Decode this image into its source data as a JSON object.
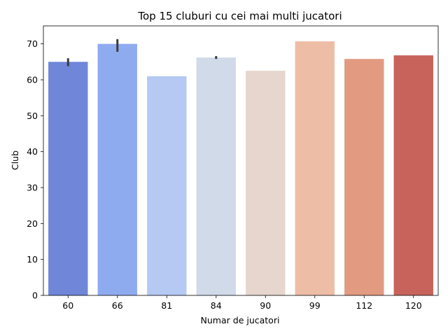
{
  "chart_data": {
    "type": "bar",
    "title": "Top 15 cluburi cu cei mai multi jucatori",
    "xlabel": "Numar de jucatori",
    "ylabel": "Club",
    "categories": [
      "60",
      "66",
      "81",
      "84",
      "90",
      "99",
      "112",
      "120"
    ],
    "values": [
      65.0,
      70.0,
      61.0,
      66.2,
      62.5,
      70.7,
      65.8,
      66.8
    ],
    "error_bars": [
      [
        63.8,
        66.0
      ],
      [
        67.8,
        71.3
      ],
      null,
      [
        65.8,
        66.6
      ],
      null,
      null,
      null,
      null
    ],
    "colors": [
      "#6f86d9",
      "#8fabf0",
      "#b5c9f3",
      "#d0dae9",
      "#e6d6cd",
      "#eebda5",
      "#e29a80",
      "#c7635a"
    ],
    "ylim": [
      0,
      75
    ],
    "yticks": [
      0,
      10,
      20,
      30,
      40,
      50,
      60,
      70
    ],
    "grid": false,
    "legend": "none"
  }
}
